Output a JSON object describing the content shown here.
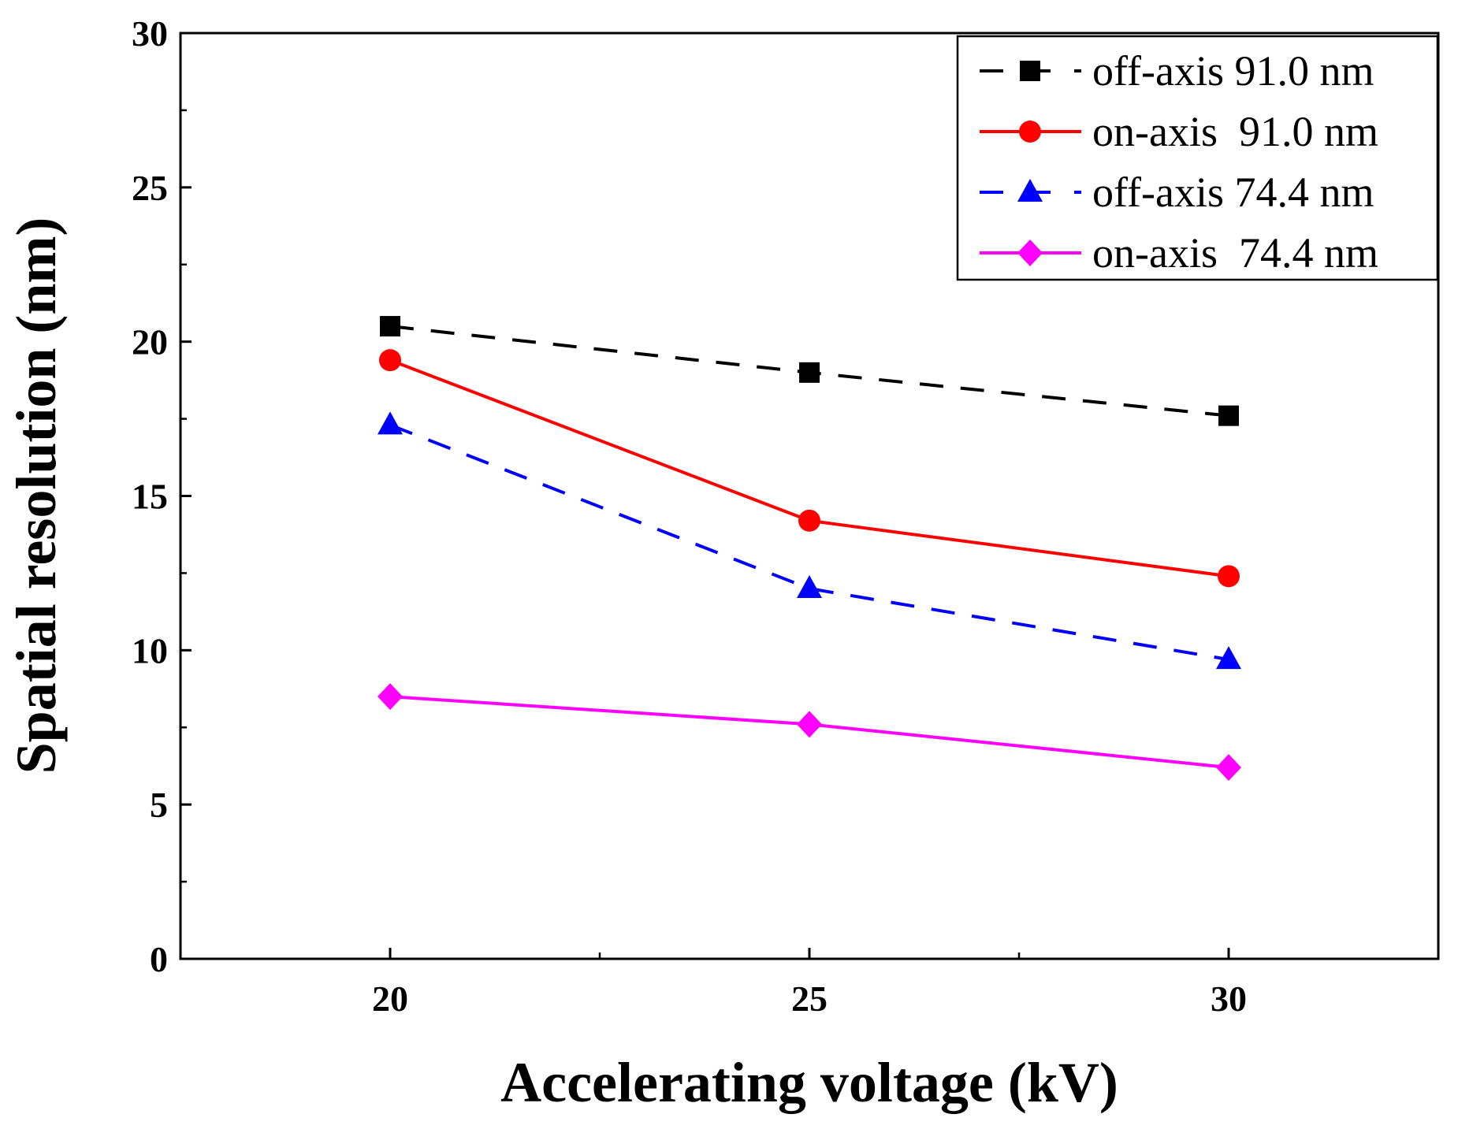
{
  "chart_data": {
    "type": "line",
    "title": "",
    "xlabel": "Accelerating voltage (kV)",
    "ylabel": "Spatial resolution (nm)",
    "x": [
      20,
      25,
      30
    ],
    "xlim": [
      17.5,
      32.5
    ],
    "ylim": [
      0,
      30
    ],
    "xticks": [
      20,
      25,
      30
    ],
    "xtick_labels": [
      "20",
      "25",
      "30"
    ],
    "yticks": [
      0,
      5,
      10,
      15,
      20,
      25,
      30
    ],
    "ytick_labels": [
      "0",
      "5",
      "10",
      "15",
      "20",
      "25",
      "30"
    ],
    "grid": false,
    "legend_position": "top-right",
    "series": [
      {
        "name": "off-axis 91.0 nm",
        "values": [
          20.5,
          19.0,
          17.6
        ],
        "color": "#000000",
        "dash": "dashed",
        "marker": "square"
      },
      {
        "name": "on-axis  91.0 nm",
        "values": [
          19.4,
          14.2,
          12.4
        ],
        "color": "#ff0000",
        "dash": "solid",
        "marker": "circle"
      },
      {
        "name": "off-axis 74.4 nm",
        "values": [
          17.3,
          12.0,
          9.7
        ],
        "color": "#0000ff",
        "dash": "dashed",
        "marker": "triangle"
      },
      {
        "name": "on-axis  74.4 nm",
        "values": [
          8.5,
          7.6,
          6.2
        ],
        "color": "#ff00ff",
        "dash": "solid",
        "marker": "diamond"
      }
    ]
  }
}
